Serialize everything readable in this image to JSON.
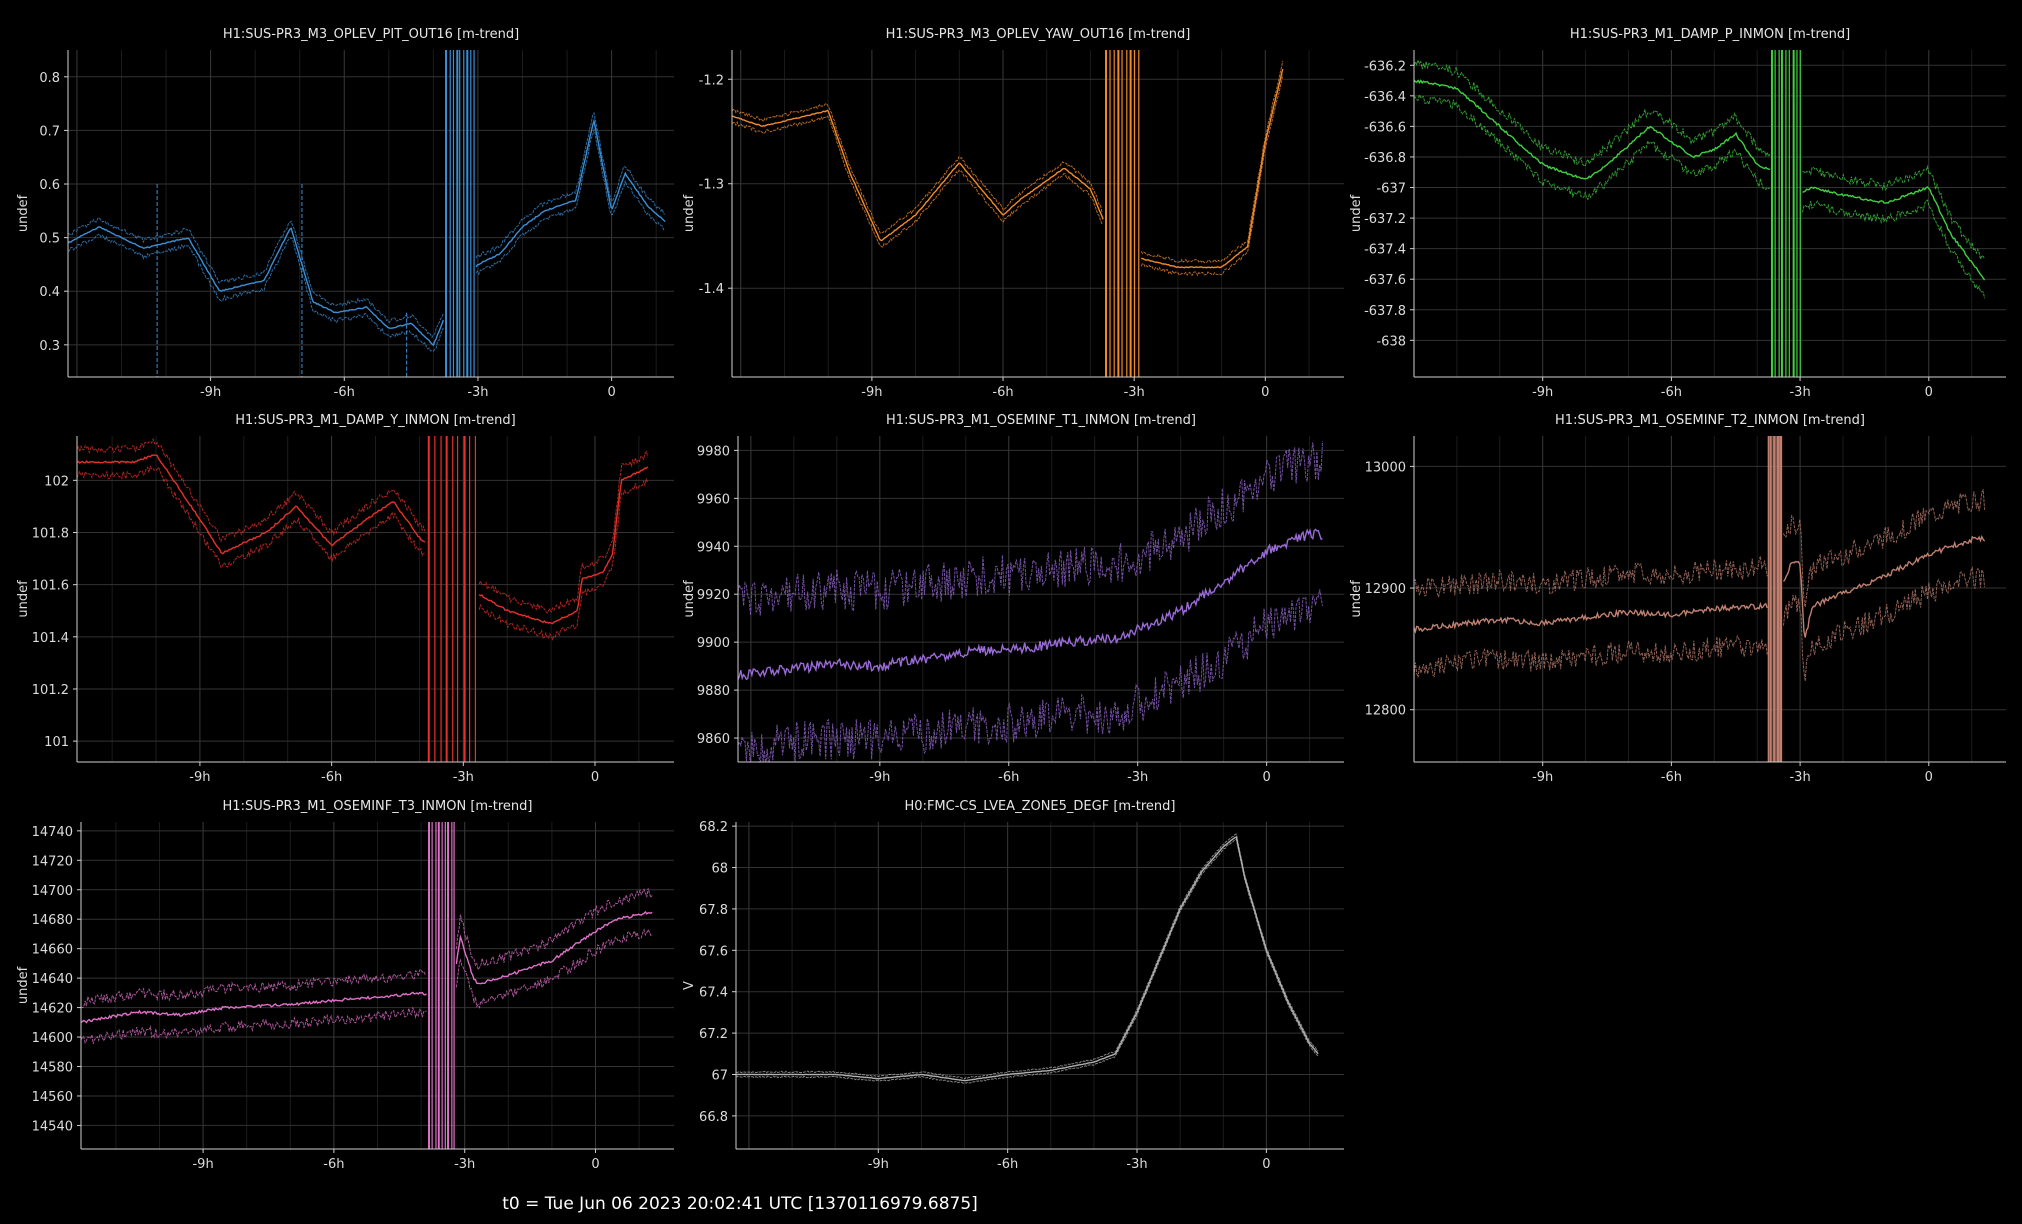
{
  "footer": "t0 = Tue Jun 06 2023 20:02:41 UTC [1370116979.6875]",
  "chart_data": [
    {
      "type": "line",
      "title": "H1:SUS-PR3_M3_OPLEV_PIT_OUT16 [m-trend]",
      "ylabel": "undef",
      "color": "#3a8fd8",
      "xlim": [
        -12.2,
        1.4
      ],
      "ylim": [
        0.24,
        0.85
      ],
      "x_ticks": [
        -9,
        -6,
        -3,
        0
      ],
      "x_tick_labels": [
        "-9h",
        "-6h",
        "-3h",
        "0"
      ],
      "y_ticks": [
        0.3,
        0.4,
        0.5,
        0.6,
        0.7,
        0.8
      ],
      "y_tick_labels": [
        "0.3",
        "0.4",
        "0.5",
        "0.6",
        "0.7",
        "0.8"
      ],
      "band": 0.015,
      "series": [
        {
          "x": [
            -12.2,
            -11.5,
            -10.5,
            -9.5,
            -8.8,
            -7.8,
            -7.2,
            -6.7,
            -6.2,
            -5.5,
            -5.0,
            -4.5,
            -4.0,
            -3.8,
            -3.55,
            -3.0,
            -2.5,
            -2.0,
            -1.5,
            -0.8,
            -0.4,
            0.0,
            0.3,
            0.8,
            1.2
          ],
          "y": [
            0.49,
            0.52,
            0.48,
            0.5,
            0.4,
            0.42,
            0.52,
            0.38,
            0.36,
            0.37,
            0.33,
            0.34,
            0.3,
            0.34,
            0.4,
            0.45,
            0.47,
            0.52,
            0.55,
            0.57,
            0.72,
            0.55,
            0.62,
            0.56,
            0.53
          ]
        }
      ],
      "gap": [
        -3.75,
        -3.05
      ],
      "spikes": [
        {
          "x": -10.2,
          "y0": 0.6,
          "y1": 0.24
        },
        {
          "x": -6.95,
          "y0": 0.6,
          "y1": 0.24
        },
        {
          "x": -4.6,
          "y0": 0.36,
          "y1": 0.24
        }
      ]
    },
    {
      "type": "line",
      "title": "H1:SUS-PR3_M3_OPLEV_YAW_OUT16 [m-trend]",
      "ylabel": "undef",
      "color": "#f28a2a",
      "xlim": [
        -12.2,
        1.8
      ],
      "ylim": [
        -1.485,
        -1.172
      ],
      "x_ticks": [
        -9,
        -6,
        -3,
        0
      ],
      "x_tick_labels": [
        "-9h",
        "-6h",
        "-3h",
        "0"
      ],
      "y_ticks": [
        -1.4,
        -1.3,
        -1.2
      ],
      "y_tick_labels": [
        "-1.4",
        "-1.3",
        "-1.2"
      ],
      "band": 0.006,
      "series": [
        {
          "x": [
            -12.2,
            -11.5,
            -10.0,
            -9.5,
            -8.8,
            -8.0,
            -7.0,
            -6.0,
            -5.6,
            -4.6,
            -4.0,
            -3.7,
            -3.0,
            -2.0,
            -1.0,
            -0.4,
            0.0,
            0.4
          ],
          "y": [
            -1.235,
            -1.245,
            -1.23,
            -1.29,
            -1.355,
            -1.33,
            -1.28,
            -1.33,
            -1.315,
            -1.285,
            -1.305,
            -1.335,
            -1.37,
            -1.38,
            -1.38,
            -1.36,
            -1.26,
            -1.19
          ]
        }
      ],
      "gap": [
        -3.7,
        -2.85
      ],
      "spikes": []
    },
    {
      "type": "line",
      "title": "H1:SUS-PR3_M1_DAMP_P_INMON [m-trend]",
      "ylabel": "undef",
      "color": "#3fd23f",
      "xlim": [
        -12.0,
        1.8
      ],
      "ylim": [
        -638.24,
        -636.1
      ],
      "x_ticks": [
        -9,
        -6,
        -3,
        0
      ],
      "x_tick_labels": [
        "-9h",
        "-6h",
        "-3h",
        "0"
      ],
      "y_ticks": [
        -638,
        -637.8,
        -637.6,
        -637.4,
        -637.2,
        -637,
        -636.8,
        -636.6,
        -636.4,
        -636.2
      ],
      "y_tick_labels": [
        "-638",
        "-637.8",
        "-637.6",
        "-637.4",
        "-637.2",
        "-637",
        "-636.8",
        "-636.6",
        "-636.4",
        "-636.2"
      ],
      "band": 0.11,
      "series": [
        {
          "x": [
            -12.0,
            -11.0,
            -10.0,
            -9.0,
            -8.0,
            -7.5,
            -6.5,
            -5.5,
            -5.0,
            -4.5,
            -4.0,
            -3.6,
            -3.2,
            -2.7,
            -2.0,
            -1.0,
            0.0,
            0.5,
            1.3
          ],
          "y": [
            -636.3,
            -636.35,
            -636.6,
            -636.85,
            -636.95,
            -636.85,
            -636.6,
            -636.8,
            -636.75,
            -636.65,
            -636.85,
            -636.9,
            -637.05,
            -637.0,
            -637.05,
            -637.1,
            -637.0,
            -637.3,
            -637.6
          ]
        }
      ],
      "gap": [
        -3.7,
        -2.95
      ],
      "spikes": []
    },
    {
      "type": "line",
      "title": "H1:SUS-PR3_M1_DAMP_Y_INMON [m-trend]",
      "ylabel": "undef",
      "color": "#e8302a",
      "xlim": [
        -11.8,
        1.8
      ],
      "ylim": [
        100.92,
        102.17
      ],
      "x_ticks": [
        -9,
        -6,
        -3,
        0
      ],
      "x_tick_labels": [
        "-9h",
        "-6h",
        "-3h",
        "0"
      ],
      "y_ticks": [
        101,
        101.2,
        101.4,
        101.6,
        101.8,
        102
      ],
      "y_tick_labels": [
        "101",
        "101.2",
        "101.4",
        "101.6",
        "101.8",
        "102"
      ],
      "band": 0.05,
      "series": [
        {
          "x": [
            -11.8,
            -10.5,
            -10.0,
            -9.0,
            -8.5,
            -7.5,
            -6.8,
            -6.0,
            -5.2,
            -4.6,
            -4.0,
            -3.5,
            -3.0,
            -2.0,
            -1.0,
            -0.4,
            -0.3,
            0.2,
            0.4,
            0.6,
            1.2
          ],
          "y": [
            102.07,
            102.07,
            102.1,
            101.85,
            101.72,
            101.8,
            101.9,
            101.75,
            101.85,
            101.92,
            101.78,
            101.7,
            101.6,
            101.5,
            101.45,
            101.5,
            101.62,
            101.65,
            101.72,
            102.0,
            102.05
          ]
        }
      ],
      "gap": [
        -3.85,
        -2.65
      ],
      "spikes": []
    },
    {
      "type": "line",
      "title": "H1:SUS-PR3_M1_OSEMINF_T1_INMON [m-trend]",
      "ylabel": "undef",
      "color": "#9a6bd8",
      "xlim": [
        -12.3,
        1.8
      ],
      "ylim": [
        9850,
        9986
      ],
      "x_ticks": [
        -9,
        -6,
        -3,
        0
      ],
      "x_tick_labels": [
        "-9h",
        "-6h",
        "-3h",
        "0"
      ],
      "y_ticks": [
        9860,
        9880,
        9900,
        9920,
        9940,
        9960,
        9980
      ],
      "y_tick_labels": [
        "9860",
        "9880",
        "9900",
        "9920",
        "9940",
        "9960",
        "9980"
      ],
      "band": 31,
      "series": [
        {
          "x": [
            -12.3,
            -11.0,
            -10.0,
            -9.0,
            -8.0,
            -7.0,
            -6.0,
            -5.0,
            -4.0,
            -3.5,
            -3.0,
            -2.0,
            -1.0,
            0.0,
            1.0,
            1.3
          ],
          "y": [
            9886,
            9889,
            9891,
            9890,
            9893,
            9896,
            9897,
            9899,
            9901,
            9901,
            9905,
            9913,
            9925,
            9938,
            9945,
            9945
          ]
        }
      ],
      "gap": [],
      "spikes": []
    },
    {
      "type": "line",
      "title": "H1:SUS-PR3_M1_OSEMINF_T2_INMON [m-trend]",
      "ylabel": "undef",
      "color": "#c08070",
      "xlim": [
        -12.0,
        1.8
      ],
      "ylim": [
        12757,
        13025
      ],
      "x_ticks": [
        -9,
        -6,
        -3,
        0
      ],
      "x_tick_labels": [
        "-9h",
        "-6h",
        "-3h",
        "0"
      ],
      "y_ticks": [
        12800,
        12900,
        13000
      ],
      "y_tick_labels": [
        "12800",
        "12900",
        "13000"
      ],
      "band": 32,
      "series": [
        {
          "x": [
            -12.0,
            -11.0,
            -10.0,
            -9.0,
            -8.0,
            -7.0,
            -6.0,
            -5.0,
            -4.0,
            -3.6,
            -3.2,
            -3.0,
            -2.9,
            -2.7,
            -2.2,
            -1.0,
            0.0,
            1.0,
            1.3
          ],
          "y": [
            12866,
            12870,
            12874,
            12871,
            12876,
            12880,
            12878,
            12883,
            12885,
            12886,
            12920,
            12920,
            12858,
            12885,
            12893,
            12910,
            12928,
            12940,
            12940
          ]
        }
      ],
      "gap": [
        -3.75,
        -3.4
      ],
      "spikes": []
    },
    {
      "type": "line",
      "title": "H1:SUS-PR3_M1_OSEMINF_T3_INMON [m-trend]",
      "ylabel": "undef",
      "color": "#e070c8",
      "xlim": [
        -11.8,
        1.8
      ],
      "ylim": [
        14524,
        14746
      ],
      "x_ticks": [
        -9,
        -6,
        -3,
        0
      ],
      "x_tick_labels": [
        "-9h",
        "-6h",
        "-3h",
        "0"
      ],
      "y_ticks": [
        14540,
        14560,
        14580,
        14600,
        14620,
        14640,
        14660,
        14680,
        14700,
        14720,
        14740
      ],
      "y_tick_labels": [
        "14540",
        "14560",
        "14580",
        "14600",
        "14620",
        "14640",
        "14660",
        "14680",
        "14700",
        "14720",
        "14740"
      ],
      "band": 13,
      "series": [
        {
          "x": [
            -11.8,
            -10.5,
            -9.5,
            -8.5,
            -7.0,
            -6.0,
            -5.0,
            -4.0,
            -3.9,
            -3.2,
            -3.1,
            -2.8,
            -2.7,
            -2.0,
            -1.0,
            0.0,
            0.5,
            1.3
          ],
          "y": [
            14610,
            14617,
            14615,
            14620,
            14622,
            14625,
            14627,
            14630,
            14628,
            14648,
            14668,
            14640,
            14636,
            14642,
            14652,
            14672,
            14680,
            14685
          ]
        }
      ],
      "gap": [
        -3.85,
        -3.2
      ],
      "spikes": []
    },
    {
      "type": "line",
      "title": "H0:FMC-CS_LVEA_ZONE5_DEGF [m-trend]",
      "ylabel": "V",
      "color": "#b0b0b0",
      "xlim": [
        -12.3,
        1.8
      ],
      "ylim": [
        66.64,
        68.22
      ],
      "x_ticks": [
        -9,
        -6,
        -3,
        0
      ],
      "x_tick_labels": [
        "-9h",
        "-6h",
        "-3h",
        "0"
      ],
      "y_ticks": [
        66.8,
        67,
        67.2,
        67.4,
        67.6,
        67.8,
        68,
        68.2
      ],
      "y_tick_labels": [
        "66.8",
        "67",
        "67.2",
        "67.4",
        "67.6",
        "67.8",
        "68",
        "68.2"
      ],
      "band": 0.012,
      "series": [
        {
          "x": [
            -12.3,
            -10.0,
            -9.0,
            -8.0,
            -7.0,
            -6.0,
            -5.0,
            -4.0,
            -3.5,
            -3.0,
            -2.5,
            -2.0,
            -1.5,
            -1.0,
            -0.7,
            -0.5,
            0.0,
            0.5,
            1.0,
            1.2
          ],
          "y": [
            67.0,
            67.0,
            66.98,
            67.0,
            66.97,
            67.0,
            67.02,
            67.06,
            67.1,
            67.3,
            67.55,
            67.8,
            67.98,
            68.1,
            68.15,
            67.95,
            67.6,
            67.35,
            67.15,
            67.1
          ]
        }
      ],
      "gap": [],
      "spikes": []
    }
  ]
}
